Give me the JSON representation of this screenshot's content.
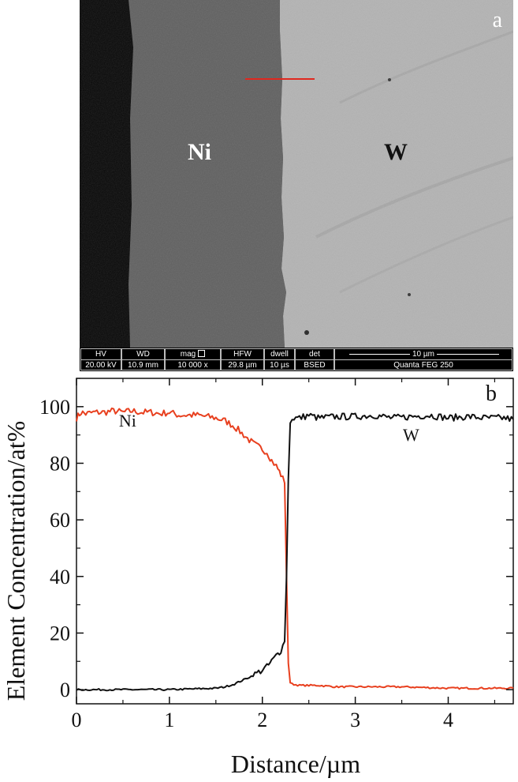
{
  "panel_a": {
    "letter": "a",
    "labels": {
      "ni": "Ni",
      "w": "W"
    },
    "databar": {
      "hv": {
        "header": "HV",
        "value": "20.00 kV"
      },
      "wd": {
        "header": "WD",
        "value": "10.9 mm"
      },
      "mag": {
        "header": "mag",
        "value": "10 000 x"
      },
      "hfw": {
        "header": "HFW",
        "value": "29.8 µm"
      },
      "dwell": {
        "header": "dwell",
        "value": "10 µs"
      },
      "det": {
        "header": "det",
        "value": "BSED"
      },
      "scale": "10 µm",
      "instrument": "Quanta FEG 250"
    },
    "colors": {
      "scan_line": "#e0281f"
    }
  },
  "chart_data": {
    "type": "line",
    "panel_letter": "b",
    "xlabel": "Distance/µm",
    "ylabel": "Element Concentration/at%",
    "xlim": [
      0,
      4.7
    ],
    "ylim": [
      -5,
      110
    ],
    "x_ticks": [
      0,
      1,
      2,
      3,
      4
    ],
    "y_ticks": [
      0,
      20,
      40,
      60,
      80,
      100
    ],
    "grid": false,
    "series": [
      {
        "name": "Ni",
        "color": "#e8401f",
        "x": [
          0,
          0.05,
          0.1,
          0.2,
          0.3,
          0.4,
          0.5,
          0.6,
          0.7,
          0.8,
          0.9,
          1.0,
          1.1,
          1.2,
          1.3,
          1.4,
          1.5,
          1.6,
          1.7,
          1.8,
          1.9,
          2.0,
          2.05,
          2.1,
          2.15,
          2.2,
          2.24,
          2.26,
          2.28,
          2.3,
          2.32,
          2.4,
          2.6,
          2.8,
          3.0,
          3.5,
          4.0,
          4.5,
          4.7
        ],
        "y": [
          96,
          98,
          97.5,
          98,
          98,
          98.5,
          98,
          98.5,
          98,
          98,
          97.5,
          98,
          97,
          97,
          97,
          96.5,
          96,
          95,
          93,
          90,
          87,
          85,
          84,
          81,
          79,
          76,
          73,
          40,
          10,
          2.5,
          2,
          1.5,
          1.5,
          1,
          1,
          1,
          0.5,
          0.5,
          0.5
        ]
      },
      {
        "name": "W",
        "color": "#111111",
        "x": [
          0,
          0.5,
          1.0,
          1.5,
          1.6,
          1.7,
          1.8,
          1.9,
          2.0,
          2.05,
          2.1,
          2.15,
          2.2,
          2.24,
          2.26,
          2.28,
          2.3,
          2.32,
          2.4,
          2.5,
          2.6,
          2.8,
          3.0,
          3.2,
          3.4,
          3.6,
          3.8,
          4.0,
          4.2,
          4.4,
          4.6,
          4.7
        ],
        "y": [
          0,
          0,
          0,
          0.5,
          1,
          2,
          3.5,
          5,
          7,
          8,
          10,
          12,
          14,
          17,
          40,
          75,
          94,
          96,
          96,
          97,
          96,
          96.5,
          96.5,
          97,
          96,
          96.5,
          97,
          96,
          96.5,
          96,
          96,
          95.5
        ]
      }
    ],
    "annotations": [
      {
        "text": "Ni",
        "x": 0.55,
        "y": 93
      },
      {
        "text": "W",
        "x": 3.6,
        "y": 88
      }
    ]
  }
}
